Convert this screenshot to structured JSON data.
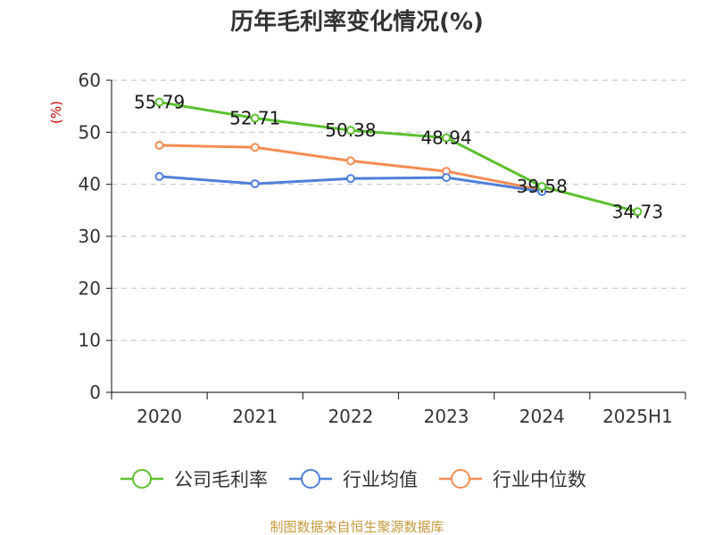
{
  "chart_data": {
    "type": "line",
    "title": "历年毛利率变化情况(%)",
    "ylabel": "(%)",
    "xlabel": "",
    "categories": [
      "2020",
      "2021",
      "2022",
      "2023",
      "2024",
      "2025H1"
    ],
    "ylim": [
      0,
      60
    ],
    "yticks": [
      "0",
      "10",
      "20",
      "30",
      "40",
      "50",
      "60"
    ],
    "grid": true,
    "legend_position": "bottom",
    "series": [
      {
        "name": "公司毛利率",
        "color": "#5cc02f",
        "values": [
          55.79,
          52.71,
          50.38,
          48.94,
          39.58,
          34.73
        ],
        "labels": [
          "55.79",
          "52.71",
          "50.38",
          "48.94",
          "39.58",
          "34.73"
        ]
      },
      {
        "name": "行业均值",
        "color": "#4f7fd8",
        "values": [
          41.5,
          40.1,
          41.1,
          41.3,
          38.6,
          null
        ]
      },
      {
        "name": "行业中位数",
        "color": "#f58c52",
        "values": [
          47.5,
          47.1,
          44.5,
          42.5,
          38.9,
          null
        ]
      }
    ],
    "source": "制图数据来自恒生聚源数据库"
  }
}
